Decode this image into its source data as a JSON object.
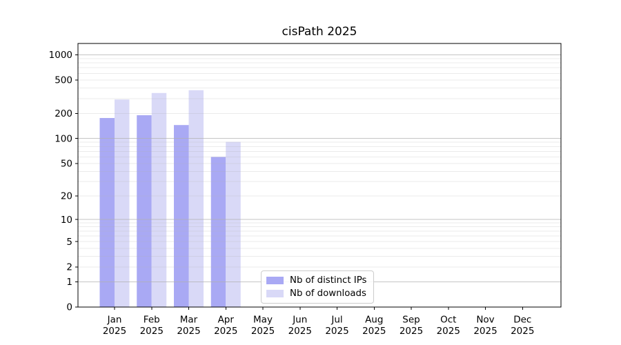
{
  "chart_data": {
    "type": "bar",
    "title": "cisPath 2025",
    "categories": [
      "Jan 2025",
      "Feb 2025",
      "Mar 2025",
      "Apr 2025",
      "May 2025",
      "Jun 2025",
      "Jul 2025",
      "Aug 2025",
      "Sep 2025",
      "Oct 2025",
      "Nov 2025",
      "Dec 2025"
    ],
    "series": [
      {
        "name": "Nb of distinct IPs",
        "color": "#a9a9f4",
        "values": [
          176,
          190,
          145,
          60,
          0,
          0,
          0,
          0,
          0,
          0,
          0,
          0
        ]
      },
      {
        "name": "Nb of downloads",
        "color": "#d9d9f7",
        "values": [
          293,
          350,
          378,
          91,
          0,
          0,
          0,
          0,
          0,
          0,
          0,
          0
        ]
      }
    ],
    "xlabel": "",
    "ylabel": "",
    "yscale": "log1p",
    "yticks": [
      0,
      1,
      2,
      5,
      10,
      20,
      50,
      100,
      200,
      500,
      1000
    ],
    "ylim": [
      0,
      1380
    ],
    "grid": {
      "on": true,
      "major": [
        1,
        10,
        100,
        1000
      ],
      "minor": [
        2,
        3,
        4,
        5,
        6,
        7,
        8,
        9,
        20,
        30,
        40,
        50,
        60,
        70,
        80,
        90,
        200,
        300,
        400,
        500,
        600,
        700,
        800,
        900
      ]
    },
    "legend": {
      "position": "inside-lower-center",
      "frame": true
    },
    "colors": {
      "major_grid": "#b0b0b0",
      "minor_grid": "#b0b0b0",
      "spine": "#000000",
      "background": "#ffffff"
    }
  }
}
